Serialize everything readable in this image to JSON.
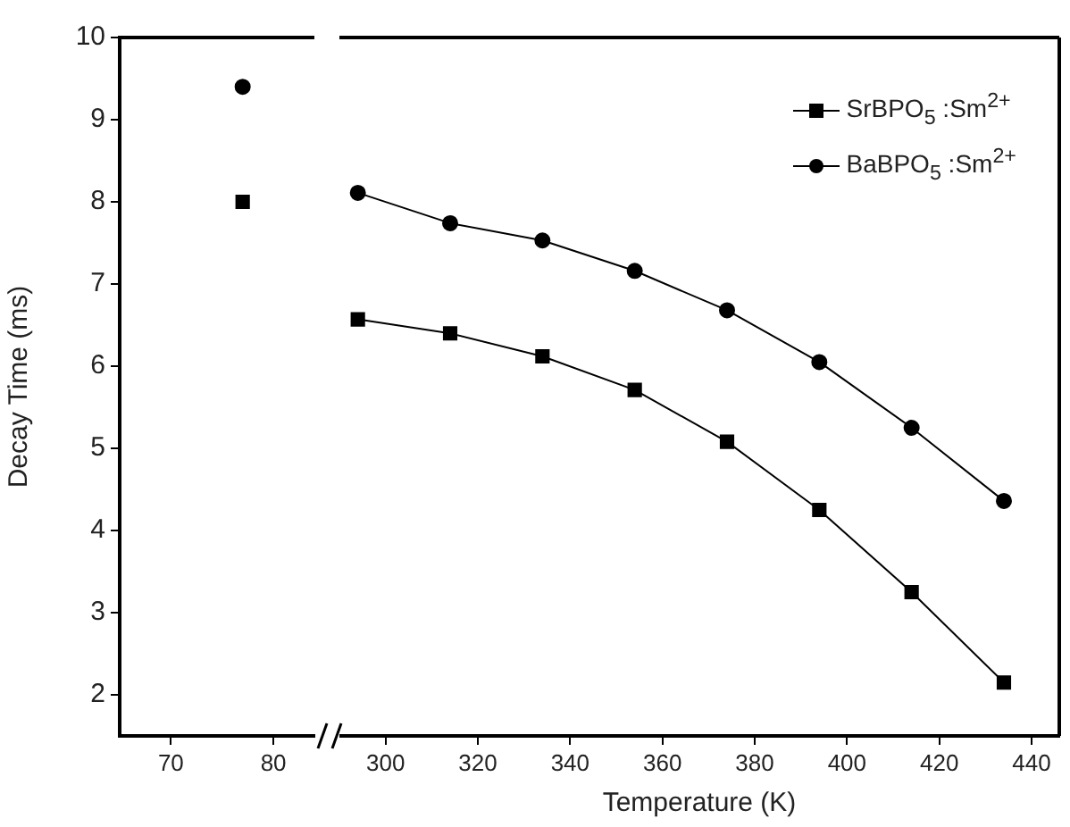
{
  "chart_data": [
    {
      "type": "scatter",
      "ylabel": "Decay Time (ms)",
      "xlim": [
        65,
        84
      ],
      "xticks": [
        70,
        80
      ],
      "ylim": [
        1.5,
        10
      ],
      "yticks": [
        2,
        3,
        4,
        5,
        6,
        7,
        8,
        9,
        10
      ],
      "grid": false,
      "series": [
        {
          "color": "#000000",
          "marker": "square",
          "x": [
            77
          ],
          "values": [
            8.0
          ]
        },
        {
          "color": "#000000",
          "marker": "circle",
          "x": [
            77
          ],
          "values": [
            9.4
          ]
        }
      ]
    },
    {
      "type": "line",
      "xlabel": "Temperature (K)",
      "xlim": [
        290,
        446
      ],
      "xticks": [
        300,
        320,
        340,
        360,
        380,
        400,
        420,
        440
      ],
      "ylim": [
        1.5,
        10
      ],
      "yticks": [
        2,
        3,
        4,
        5,
        6,
        7,
        8,
        9,
        10
      ],
      "grid": false,
      "tick_labels": "x",
      "legend": "top right",
      "series": [
        {
          "name": "SrBPO$_{5}$ :Sm$^{2+}$",
          "color": "#000000",
          "marker": "square",
          "x": [
            294,
            314,
            334,
            354,
            374,
            394,
            414,
            434
          ],
          "values": [
            6.57,
            6.4,
            6.12,
            5.71,
            5.08,
            4.25,
            3.25,
            2.15
          ]
        },
        {
          "name": "BaBPO$_{5}$ :Sm$^{2+}$",
          "color": "#000000",
          "marker": "circle",
          "x": [
            294,
            314,
            334,
            354,
            374,
            394,
            414,
            434
          ],
          "values": [
            8.11,
            7.74,
            7.53,
            7.16,
            6.68,
            6.05,
            5.25,
            4.36
          ]
        }
      ]
    }
  ]
}
